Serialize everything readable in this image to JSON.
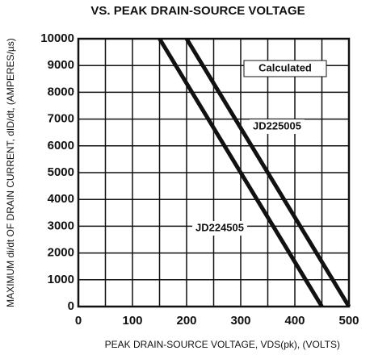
{
  "chart_data": {
    "type": "line",
    "title": "VS. PEAK DRAIN-SOURCE VOLTAGE",
    "y_label": "MAXIMUM di/dt OF DRAIN CURRENT, dID/dt, (AMPERES/µs)",
    "x_label": "PEAK DRAIN-SOURCE VOLTAGE, VDS(pk), (VOLTS)",
    "annotation": "Calculated",
    "xlim": [
      0,
      500
    ],
    "xticks": [
      0,
      100,
      200,
      300,
      400,
      500
    ],
    "xminorticks": [
      50,
      150,
      250,
      350,
      450
    ],
    "ylim": [
      0,
      10000
    ],
    "yticks": [
      0,
      1000,
      2000,
      3000,
      4000,
      5000,
      6000,
      7000,
      8000,
      9000,
      10000
    ],
    "grid": true,
    "series": [
      {
        "name": "JD225005",
        "color": "#111111",
        "x": [
          200,
          500
        ],
        "values": [
          10000,
          0
        ]
      },
      {
        "name": "JD224505",
        "color": "#111111",
        "x": [
          150,
          450
        ],
        "values": [
          10000,
          0
        ]
      }
    ]
  }
}
